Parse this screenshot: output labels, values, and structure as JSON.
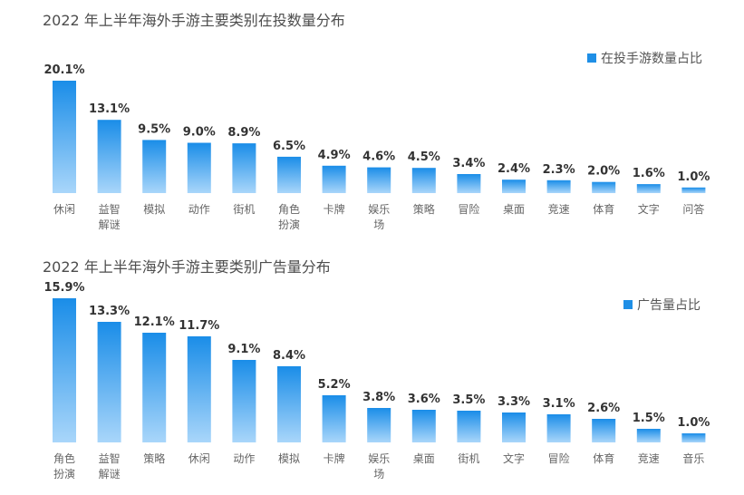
{
  "chart_data": [
    {
      "type": "bar",
      "title": "2022 年上半年海外手游主要类别在投数量分布",
      "legend": "在投手游数量占比",
      "legend_position": "top-right",
      "grid": false,
      "categories": [
        "休闲",
        "益智解谜",
        "模拟",
        "动作",
        "街机",
        "角色扮演",
        "卡牌",
        "娱乐场",
        "策略",
        "冒险",
        "桌面",
        "竞速",
        "体育",
        "文字",
        "问答"
      ],
      "values": [
        20.1,
        13.1,
        9.5,
        9.0,
        8.9,
        6.5,
        4.9,
        4.6,
        4.5,
        3.4,
        2.4,
        2.3,
        2.0,
        1.6,
        1.0
      ],
      "value_labels": [
        "20.1%",
        "13.1%",
        "9.5%",
        "9.0%",
        "8.9%",
        "6.5%",
        "4.9%",
        "4.6%",
        "4.5%",
        "3.4%",
        "2.4%",
        "2.3%",
        "2.0%",
        "1.6%",
        "1.0%"
      ],
      "ylim": [
        0,
        20.1
      ]
    },
    {
      "type": "bar",
      "title": "2022 年上半年海外手游主要类别广告量分布",
      "legend": "广告量占比",
      "legend_position": "top-right",
      "grid": false,
      "categories": [
        "角色扮演",
        "益智解谜",
        "策略",
        "休闲",
        "动作",
        "模拟",
        "卡牌",
        "娱乐场",
        "桌面",
        "街机",
        "文字",
        "冒险",
        "体育",
        "竞速",
        "音乐"
      ],
      "values": [
        15.9,
        13.3,
        12.1,
        11.7,
        9.1,
        8.4,
        5.2,
        3.8,
        3.6,
        3.5,
        3.3,
        3.1,
        2.6,
        1.5,
        1.0
      ],
      "value_labels": [
        "15.9%",
        "13.3%",
        "12.1%",
        "11.7%",
        "9.1%",
        "8.4%",
        "5.2%",
        "3.8%",
        "3.6%",
        "3.5%",
        "3.3%",
        "3.1%",
        "2.6%",
        "1.5%",
        "1.0%"
      ],
      "ylim": [
        0,
        15.9
      ]
    }
  ],
  "colors": {
    "bar_top": "#1a8de8",
    "bar_bottom": "#a9d6fa",
    "legend_swatch": "#1f8fe6"
  }
}
